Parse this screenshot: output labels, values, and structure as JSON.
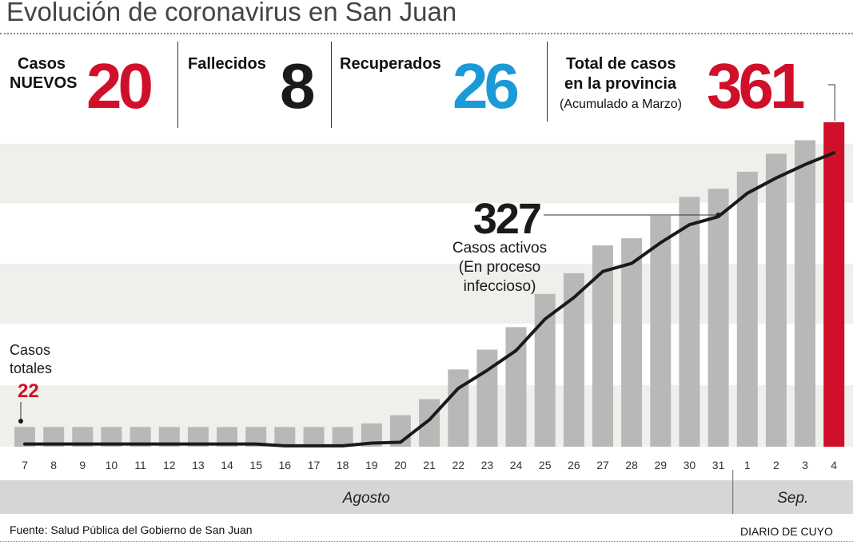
{
  "title": "Evolución de coronavirus en San Juan",
  "stats": {
    "new_cases": {
      "label_line1": "Casos",
      "label_line2": "NUEVOS",
      "value": "20",
      "color": "#d0102a"
    },
    "deaths": {
      "label": "Fallecidos",
      "value": "8",
      "color": "#1a1a1a"
    },
    "recovered": {
      "label": "Recuperados",
      "value": "26",
      "color": "#1a9ad6"
    },
    "total": {
      "label_line1": "Total de casos",
      "label_line2": "en la provincia",
      "sublabel": "(Acumulado a Marzo)",
      "value": "361",
      "color": "#d0102a"
    }
  },
  "chart_data": {
    "type": "bar",
    "categories": [
      "7",
      "8",
      "9",
      "10",
      "11",
      "12",
      "13",
      "14",
      "15",
      "16",
      "17",
      "18",
      "19",
      "20",
      "21",
      "22",
      "23",
      "24",
      "25",
      "26",
      "27",
      "28",
      "29",
      "30",
      "31",
      "1",
      "2",
      "3",
      "4"
    ],
    "series": [
      {
        "values": [
          22,
          22,
          22,
          22,
          22,
          22,
          22,
          22,
          22,
          22,
          22,
          22,
          26,
          35,
          53,
          86,
          108,
          133,
          170,
          193,
          224,
          232,
          257,
          278,
          287,
          306,
          326,
          341,
          361
        ]
      },
      {
        "values": [
          3,
          3,
          3,
          3,
          3,
          3,
          3,
          3,
          3,
          1,
          1,
          1,
          4,
          5,
          30,
          65,
          85,
          107,
          142,
          166,
          195,
          204,
          227,
          247,
          256,
          282,
          299,
          314,
          327
        ]
      }
    ],
    "highlight_bar_index": 28,
    "bar_color": "#b8b8b9",
    "highlight_color": "#d0102a",
    "line_color": "#1a1a1a",
    "ylim": [
      0,
      361
    ],
    "annotations": {
      "active": {
        "value": "327",
        "label_lines": [
          "Casos activos",
          "(En proceso",
          "infeccioso)"
        ]
      },
      "total_start": {
        "value": "22",
        "label_lines": [
          "Casos",
          "totales"
        ]
      }
    },
    "months": [
      {
        "label": "Agosto"
      },
      {
        "label": "Sep."
      }
    ],
    "month_splits": [
      25
    ]
  },
  "footer": {
    "source": "Fuente: Salud Pública del Gobierno de San Juan",
    "brand": "DIARIO DE CUYO"
  }
}
